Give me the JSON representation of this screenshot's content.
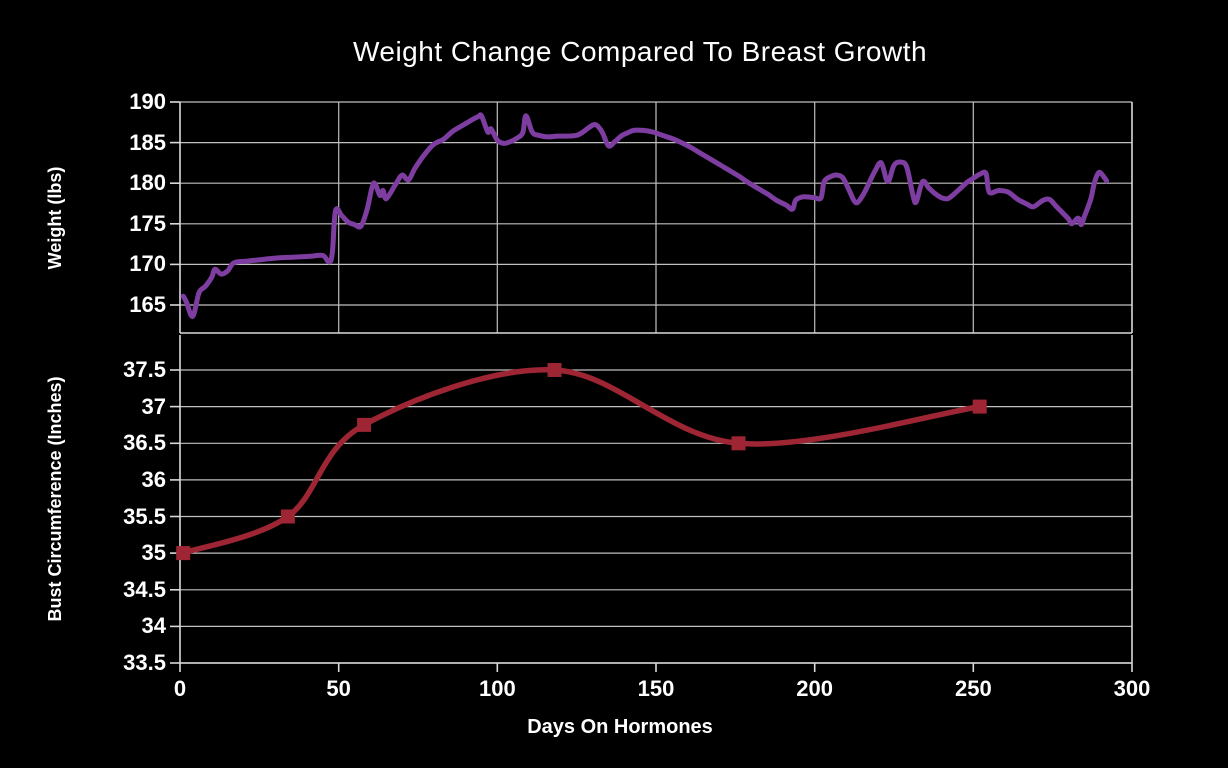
{
  "chart_data": {
    "type": "line",
    "title": "Weight Change Compared To Breast Growth",
    "xlabel": "Days On Hormones",
    "xlim": [
      0,
      300
    ],
    "x_ticks": [
      0,
      50,
      100,
      150,
      200,
      250,
      300
    ],
    "grid": true,
    "legend": "none",
    "background_color": "#000000",
    "text_color": "#ffffff",
    "grid_color": "#c0c0c0",
    "axis_color": "#d9d9d9",
    "panels": [
      {
        "name": "weight",
        "position": "top",
        "ylabel": "Weight (lbs)",
        "y_ticks": [
          165,
          170,
          175,
          180,
          185,
          190
        ],
        "ylim_display": [
          161.5,
          190
        ],
        "vertical_gridlines": true,
        "line_color": "#7e3da0",
        "line_width": 5,
        "marker": "none",
        "points": [
          [
            1,
            166.1
          ],
          [
            2,
            165.4
          ],
          [
            4,
            163.6
          ],
          [
            6,
            166.5
          ],
          [
            8,
            167.3
          ],
          [
            10,
            168.4
          ],
          [
            11,
            169.4
          ],
          [
            13,
            168.8
          ],
          [
            15,
            169.2
          ],
          [
            17,
            170.2
          ],
          [
            21,
            170.4
          ],
          [
            26,
            170.6
          ],
          [
            31,
            170.8
          ],
          [
            36,
            170.9
          ],
          [
            41,
            171.0
          ],
          [
            45,
            171.1
          ],
          [
            47,
            170.3
          ],
          [
            48,
            171.4
          ],
          [
            49,
            176.6
          ],
          [
            51,
            176.0
          ],
          [
            53,
            175.2
          ],
          [
            55,
            174.9
          ],
          [
            57,
            174.7
          ],
          [
            59,
            176.8
          ],
          [
            61,
            180.0
          ],
          [
            63,
            178.5
          ],
          [
            64,
            179.1
          ],
          [
            65,
            178.1
          ],
          [
            68,
            179.9
          ],
          [
            70,
            181.0
          ],
          [
            72,
            180.4
          ],
          [
            74,
            181.8
          ],
          [
            77,
            183.5
          ],
          [
            80,
            184.8
          ],
          [
            83,
            185.4
          ],
          [
            86,
            186.4
          ],
          [
            89,
            187.1
          ],
          [
            92,
            187.8
          ],
          [
            94,
            188.2
          ],
          [
            95,
            188.3
          ],
          [
            97,
            186.3
          ],
          [
            98,
            186.7
          ],
          [
            100,
            185.3
          ],
          [
            102,
            184.9
          ],
          [
            104,
            185.1
          ],
          [
            106,
            185.5
          ],
          [
            108,
            186.2
          ],
          [
            109,
            188.3
          ],
          [
            111,
            186.3
          ],
          [
            113,
            185.9
          ],
          [
            116,
            185.7
          ],
          [
            119,
            185.8
          ],
          [
            122,
            185.8
          ],
          [
            125,
            185.9
          ],
          [
            127,
            186.3
          ],
          [
            129,
            186.9
          ],
          [
            131,
            187.2
          ],
          [
            133,
            186.3
          ],
          [
            135,
            184.6
          ],
          [
            137,
            185.1
          ],
          [
            139,
            185.8
          ],
          [
            141,
            186.2
          ],
          [
            143,
            186.5
          ],
          [
            146,
            186.5
          ],
          [
            149,
            186.3
          ],
          [
            152,
            185.9
          ],
          [
            155,
            185.5
          ],
          [
            158,
            185.0
          ],
          [
            161,
            184.4
          ],
          [
            164,
            183.7
          ],
          [
            167,
            183.0
          ],
          [
            170,
            182.3
          ],
          [
            173,
            181.6
          ],
          [
            176,
            180.9
          ],
          [
            179,
            180.1
          ],
          [
            182,
            179.4
          ],
          [
            185,
            178.7
          ],
          [
            188,
            177.9
          ],
          [
            191,
            177.3
          ],
          [
            193,
            176.8
          ],
          [
            194,
            177.9
          ],
          [
            196,
            178.3
          ],
          [
            198,
            178.3
          ],
          [
            200,
            178.2
          ],
          [
            202,
            178.2
          ],
          [
            203,
            180.2
          ],
          [
            205,
            180.8
          ],
          [
            207,
            181.0
          ],
          [
            209,
            180.6
          ],
          [
            211,
            179.0
          ],
          [
            213,
            177.6
          ],
          [
            215,
            178.4
          ],
          [
            217,
            179.9
          ],
          [
            219,
            181.5
          ],
          [
            221,
            182.5
          ],
          [
            223,
            180.2
          ],
          [
            225,
            182.2
          ],
          [
            227,
            182.6
          ],
          [
            229,
            182.0
          ],
          [
            231,
            178.5
          ],
          [
            232,
            177.7
          ],
          [
            234,
            180.2
          ],
          [
            236,
            179.4
          ],
          [
            238,
            178.7
          ],
          [
            240,
            178.2
          ],
          [
            242,
            178.1
          ],
          [
            244,
            178.7
          ],
          [
            246,
            179.4
          ],
          [
            248,
            180.1
          ],
          [
            250,
            180.6
          ],
          [
            252,
            181.1
          ],
          [
            254,
            181.2
          ],
          [
            255,
            178.9
          ],
          [
            258,
            179.1
          ],
          [
            261,
            178.9
          ],
          [
            264,
            178.0
          ],
          [
            267,
            177.4
          ],
          [
            269,
            177.1
          ],
          [
            272,
            177.9
          ],
          [
            274,
            178.0
          ],
          [
            276,
            177.2
          ],
          [
            278,
            176.4
          ],
          [
            280,
            175.6
          ],
          [
            281,
            175.0
          ],
          [
            283,
            175.7
          ],
          [
            284,
            174.9
          ],
          [
            285,
            175.9
          ],
          [
            287,
            178.0
          ],
          [
            288,
            179.8
          ],
          [
            289,
            181.0
          ],
          [
            290,
            181.3
          ],
          [
            292,
            180.3
          ]
        ]
      },
      {
        "name": "bust",
        "position": "bottom",
        "ylabel": "Bust Circumference (Inches)",
        "y_ticks": [
          33.5,
          34,
          34.5,
          35,
          35.5,
          36,
          36.5,
          37,
          37.5
        ],
        "ylim_display": [
          33.5,
          38
        ],
        "vertical_gridlines": false,
        "line_color": "#9e2533",
        "line_width": 5.5,
        "marker": "square",
        "marker_size": 14,
        "points": [
          [
            1,
            35
          ],
          [
            34,
            35.5
          ],
          [
            58,
            36.75
          ],
          [
            118,
            37.5
          ],
          [
            176,
            36.5
          ],
          [
            252,
            37
          ]
        ]
      }
    ]
  }
}
